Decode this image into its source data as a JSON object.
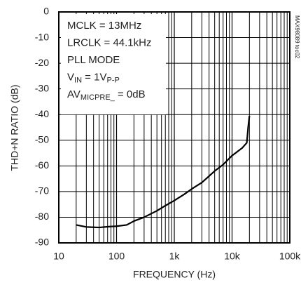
{
  "chart_data": {
    "type": "line",
    "xlabel": "FREQUENCY (Hz)",
    "ylabel": "THD+N RATIO (dB)",
    "side_note": "MAX98089 toc02",
    "annotations": [
      [
        "MCLK = 13MHz"
      ],
      [
        "LRCLK = 44.1kHz"
      ],
      [
        "PLL MODE"
      ],
      [
        "V",
        "IN",
        " = 1V",
        "P-P"
      ],
      [
        "AV",
        "MICPRE_",
        " = 0dB"
      ]
    ],
    "x": [
      20,
      30,
      50,
      70,
      100,
      150,
      200,
      300,
      500,
      700,
      1000,
      1500,
      2000,
      3000,
      5000,
      7000,
      10000,
      15000,
      18000,
      19000,
      20000
    ],
    "series": [
      {
        "color": "#000000",
        "values": [
          -83,
          -83.8,
          -84,
          -83.7,
          -83.5,
          -83,
          -81.5,
          -80,
          -77.5,
          -75.5,
          -73.5,
          -71,
          -69,
          -66.5,
          -62,
          -59.5,
          -56,
          -53,
          -51,
          -45,
          -40.5
        ]
      }
    ],
    "xlim": [
      10,
      100000
    ],
    "ylim": [
      -90,
      0
    ],
    "xlog": true,
    "grid": true,
    "minor_grid": true,
    "xticks": [
      10,
      100,
      {
        "value": 1000,
        "label": "1k"
      },
      {
        "value": 10000,
        "label": "10k"
      },
      {
        "value": 100000,
        "label": "100k"
      }
    ],
    "yticks": [
      0,
      -10,
      -20,
      -30,
      -40,
      -50,
      -60,
      -70,
      -80,
      -90
    ]
  }
}
